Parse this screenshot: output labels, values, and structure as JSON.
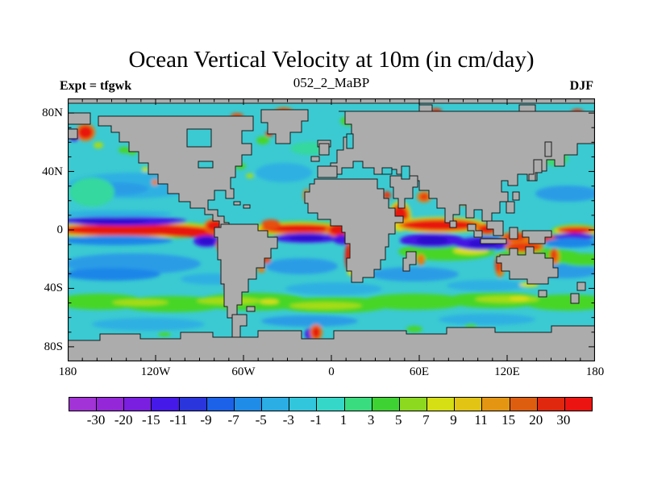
{
  "header": {
    "title": "Ocean Vertical Velocity at 10m (in cm/day)",
    "subtitle": "052_2_MaBP",
    "experiment_label": "Expt = tfgwk",
    "season": "DJF"
  },
  "map": {
    "x_tick_labels": [
      "180",
      "120W",
      "60W",
      "0",
      "60E",
      "120E",
      "180"
    ],
    "y_tick_labels": [
      "80N",
      "40N",
      "0",
      "40S",
      "80S"
    ],
    "land_color": "#ACACAC",
    "ocean_base_color": "#3BCAD2"
  },
  "colorbar": {
    "boundary_labels": [
      "-30",
      "-20",
      "-15",
      "-11",
      "-9",
      "-7",
      "-5",
      "-3",
      "-1",
      "1",
      "3",
      "5",
      "7",
      "9",
      "11",
      "15",
      "20",
      "30"
    ],
    "segment_colors": [
      "#A233D6",
      "#9428D8",
      "#7A1EE0",
      "#4519E8",
      "#2B35DC",
      "#1B62E8",
      "#1F8CE8",
      "#2BAEE4",
      "#32C6DC",
      "#35D8C8",
      "#39DC7E",
      "#3ED332",
      "#8CD920",
      "#D6DE14",
      "#E2C414",
      "#E49612",
      "#DE5E10",
      "#E0280E",
      "#EC1410"
    ]
  },
  "chart_data": {
    "type": "heatmap",
    "title": "Ocean Vertical Velocity at 10m (in cm/day)",
    "subtitle": "052_2_MaBP",
    "experiment": "tfgwk",
    "season": "DJF",
    "variable": "ocean vertical velocity at 10 m depth",
    "units": "cm/day",
    "projection": "global cylindrical lat-lon, land masked in gray",
    "x_axis": {
      "label": "longitude",
      "ticks": [
        "180",
        "120W",
        "60W",
        "0",
        "60E",
        "120E",
        "180"
      ],
      "range_deg": [
        -180,
        180
      ],
      "minor_tick_deg": 10
    },
    "y_axis": {
      "label": "latitude",
      "ticks": [
        "80N",
        "40N",
        "0",
        "40S",
        "80S"
      ],
      "range_deg": [
        -90,
        90
      ],
      "minor_tick_deg": 10
    },
    "contour_levels": [
      -30,
      -20,
      -15,
      -11,
      -9,
      -7,
      -5,
      -3,
      -1,
      1,
      3,
      5,
      7,
      9,
      11,
      15,
      20,
      30
    ],
    "palette": [
      "#A233D6",
      "#9428D8",
      "#7A1EE0",
      "#4519E8",
      "#2B35DC",
      "#1B62E8",
      "#1F8CE8",
      "#2BAEE4",
      "#32C6DC",
      "#35D8C8",
      "#39DC7E",
      "#3ED332",
      "#8CD920",
      "#D6DE14",
      "#E2C414",
      "#E49612",
      "#DE5E10",
      "#E0280E",
      "#EC1410"
    ],
    "land_mask_color": "#ACACAC",
    "background_value_range": "-1 to 1 (cyan) over most open ocean",
    "notable_features": [
      "strong equatorial upwelling band (> 30 cm/day, red) across the central/eastern Pacific, equatorial Atlantic and Indian Ocean",
      "strong downwelling bands (-15 to -30 cm/day, purple/indigo) flanking the equatorial red band, especially north of it in the west Pacific and south of it near South America, in the Atlantic and around Indonesia",
      "broad upwelling band (3-9 cm/day, green with yellow cores) along ~45-55S in the Southern Ocean",
      "secondary green upwelling band at ~10-20S in the Indian Ocean",
      "coastal upwelling maxima (orange/red) along Peru-Chile, Benguela/SW Africa, Somalia, NW/N Australia, Indonesia and various Arctic coastal points",
      "weak downwelling (-3 to -9 cm/day, blue) in subtropical gyre bands near 10-30N and 10-30S"
    ]
  }
}
